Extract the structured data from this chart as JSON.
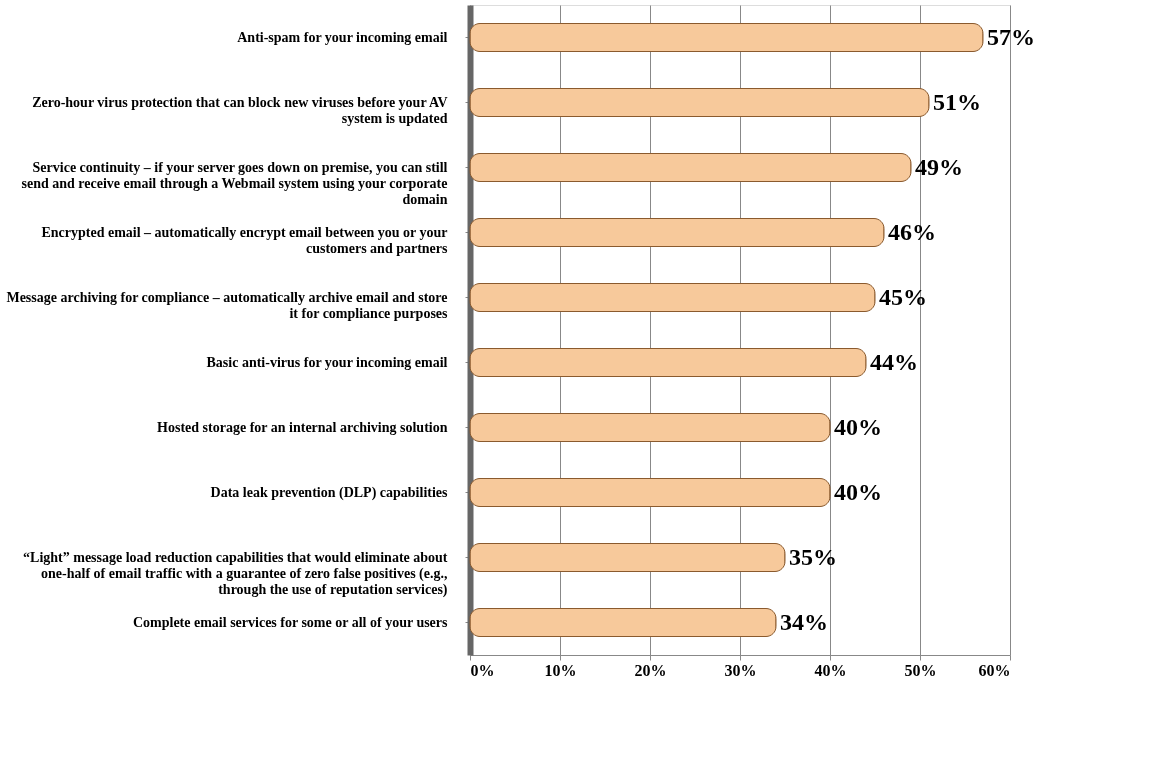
{
  "chart_data": {
    "type": "bar",
    "orientation": "horizontal",
    "categories": [
      "Anti-spam for your incoming email",
      "Zero-hour virus protection that can block new viruses before your AV system is updated",
      "Service continuity – if your server goes down on premise, you can still send and receive email through a Webmail system using your corporate domain",
      "Encrypted email – automatically encrypt email between you or your customers and partners",
      "Message archiving for compliance – automatically archive email and store it for compliance purposes",
      "Basic anti-virus for your incoming email",
      "Hosted storage for an internal archiving solution",
      "Data leak prevention (DLP) capabilities",
      "“Light” message load reduction capabilities that would eliminate about one-half of email traffic with a guarantee of zero false positives (e.g., through the use of reputation services)",
      "Complete email services for some or all of your users"
    ],
    "values": [
      57,
      51,
      49,
      46,
      45,
      44,
      40,
      40,
      35,
      34
    ],
    "value_labels": [
      "57%",
      "51%",
      "49%",
      "46%",
      "45%",
      "44%",
      "40%",
      "40%",
      "35%",
      "34%"
    ],
    "color": "#f7c99b",
    "xlim": [
      0,
      60
    ],
    "xticks": [
      {
        "value": 0,
        "label": "0%"
      },
      {
        "value": 10,
        "label": "10%"
      },
      {
        "value": 20,
        "label": "20%"
      },
      {
        "value": 30,
        "label": "30%"
      },
      {
        "value": 40,
        "label": "40%"
      },
      {
        "value": 50,
        "label": "50%"
      },
      {
        "value": 60,
        "label": "60%"
      }
    ],
    "grid": "x"
  }
}
